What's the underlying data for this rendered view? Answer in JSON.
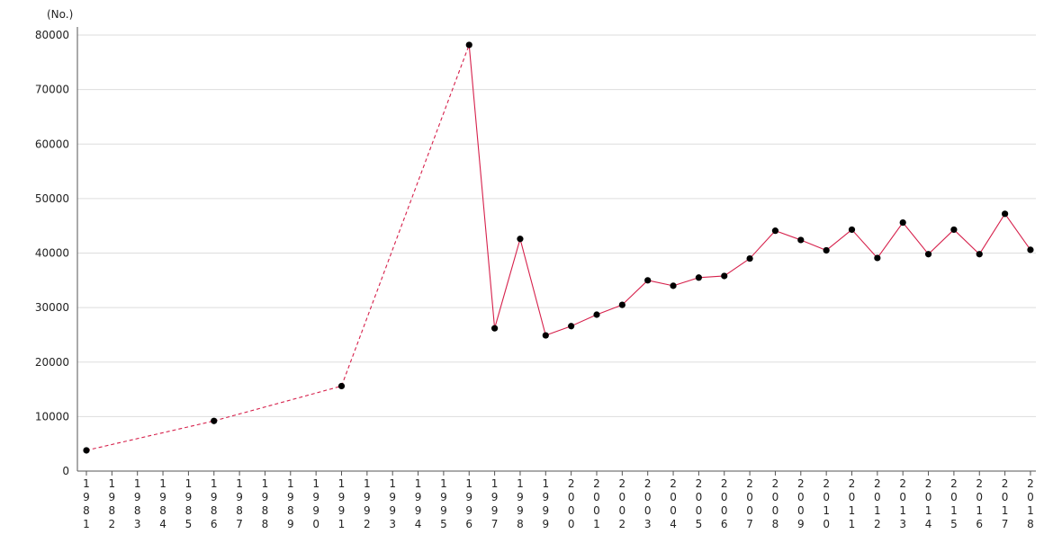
{
  "chart_data": {
    "type": "line",
    "unit_label": "(No.)",
    "title": "",
    "xlabel": "",
    "ylabel": "",
    "ylim": [
      0,
      80000
    ],
    "y_ticks": [
      0,
      10000,
      20000,
      30000,
      40000,
      50000,
      60000,
      70000,
      80000
    ],
    "y_tick_labels": [
      "0",
      "10000",
      "20000",
      "30000",
      "40000",
      "50000",
      "60000",
      "70000",
      "80000"
    ],
    "grid": true,
    "x_categories": [
      "1981",
      "1982",
      "1983",
      "1984",
      "1985",
      "1986",
      "1987",
      "1988",
      "1989",
      "1990",
      "1991",
      "1992",
      "1993",
      "1994",
      "1995",
      "1996",
      "1997",
      "1998",
      "1999",
      "2000",
      "2001",
      "2002",
      "2003",
      "2004",
      "2005",
      "2006",
      "2007",
      "2008",
      "2009",
      "2010",
      "2011",
      "2012",
      "2013",
      "2014",
      "2015",
      "2016",
      "2017",
      "2018"
    ],
    "series": [
      {
        "color": "#d6204b",
        "marker_color": "#000000",
        "points": [
          {
            "x": "1981",
            "y": 3800
          },
          {
            "x": "1986",
            "y": 9200
          },
          {
            "x": "1991",
            "y": 15600
          },
          {
            "x": "1996",
            "y": 78200
          },
          {
            "x": "1997",
            "y": 26200
          },
          {
            "x": "1998",
            "y": 42600
          },
          {
            "x": "1999",
            "y": 24900
          },
          {
            "x": "2000",
            "y": 26600
          },
          {
            "x": "2001",
            "y": 28700
          },
          {
            "x": "2002",
            "y": 30500
          },
          {
            "x": "2003",
            "y": 35000
          },
          {
            "x": "2004",
            "y": 34000
          },
          {
            "x": "2005",
            "y": 35500
          },
          {
            "x": "2006",
            "y": 35800
          },
          {
            "x": "2007",
            "y": 39000
          },
          {
            "x": "2008",
            "y": 44100
          },
          {
            "x": "2009",
            "y": 42400
          },
          {
            "x": "2010",
            "y": 40500
          },
          {
            "x": "2011",
            "y": 44300
          },
          {
            "x": "2012",
            "y": 39100
          },
          {
            "x": "2013",
            "y": 45600
          },
          {
            "x": "2014",
            "y": 39800
          },
          {
            "x": "2015",
            "y": 44300
          },
          {
            "x": "2016",
            "y": 39800
          },
          {
            "x": "2017",
            "y": 47200
          },
          {
            "x": "2018",
            "y": 40600
          }
        ]
      }
    ]
  }
}
